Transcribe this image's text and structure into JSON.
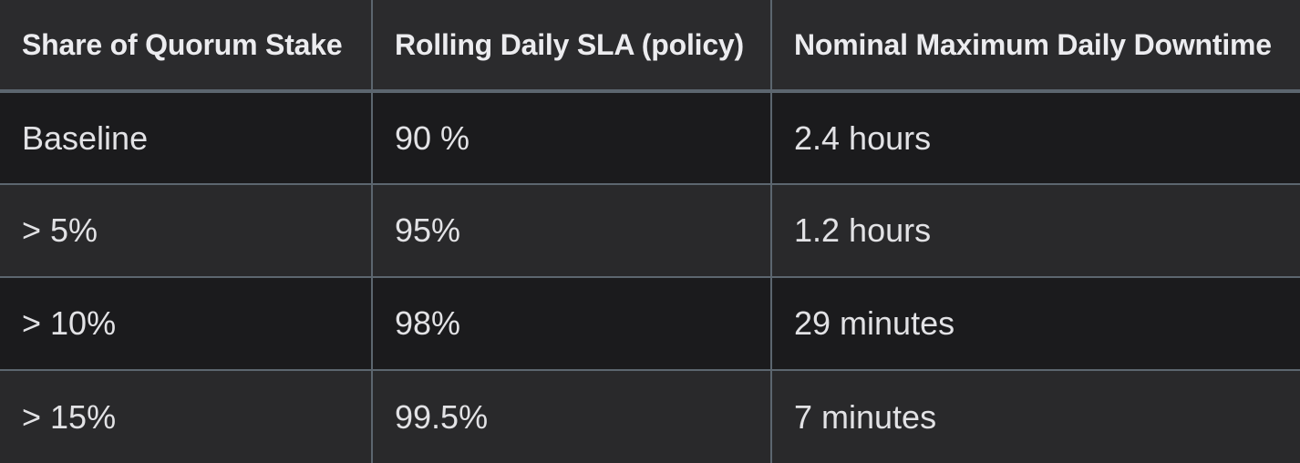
{
  "table": {
    "columns": [
      {
        "label": "Share of Quorum Stake"
      },
      {
        "label": "Rolling Daily SLA (policy)"
      },
      {
        "label": "Nominal Maximum Daily Downtime"
      }
    ],
    "rows": [
      {
        "stake": "Baseline",
        "sla": "90 %",
        "downtime": "2.4 hours"
      },
      {
        "stake": "> 5%",
        "sla": "95%",
        "downtime": "1.2 hours"
      },
      {
        "stake": "> 10%",
        "sla": "98%",
        "downtime": "29 minutes"
      },
      {
        "stake": "> 15%",
        "sla": "99.5%",
        "downtime": "7 minutes"
      }
    ]
  },
  "colors": {
    "header_bg": "#2b2b2d",
    "row_odd_bg": "#1b1b1d",
    "row_even_bg": "#29292b",
    "border": "#5c666f",
    "header_text": "#ececef",
    "body_text": "#e2e2e5"
  }
}
